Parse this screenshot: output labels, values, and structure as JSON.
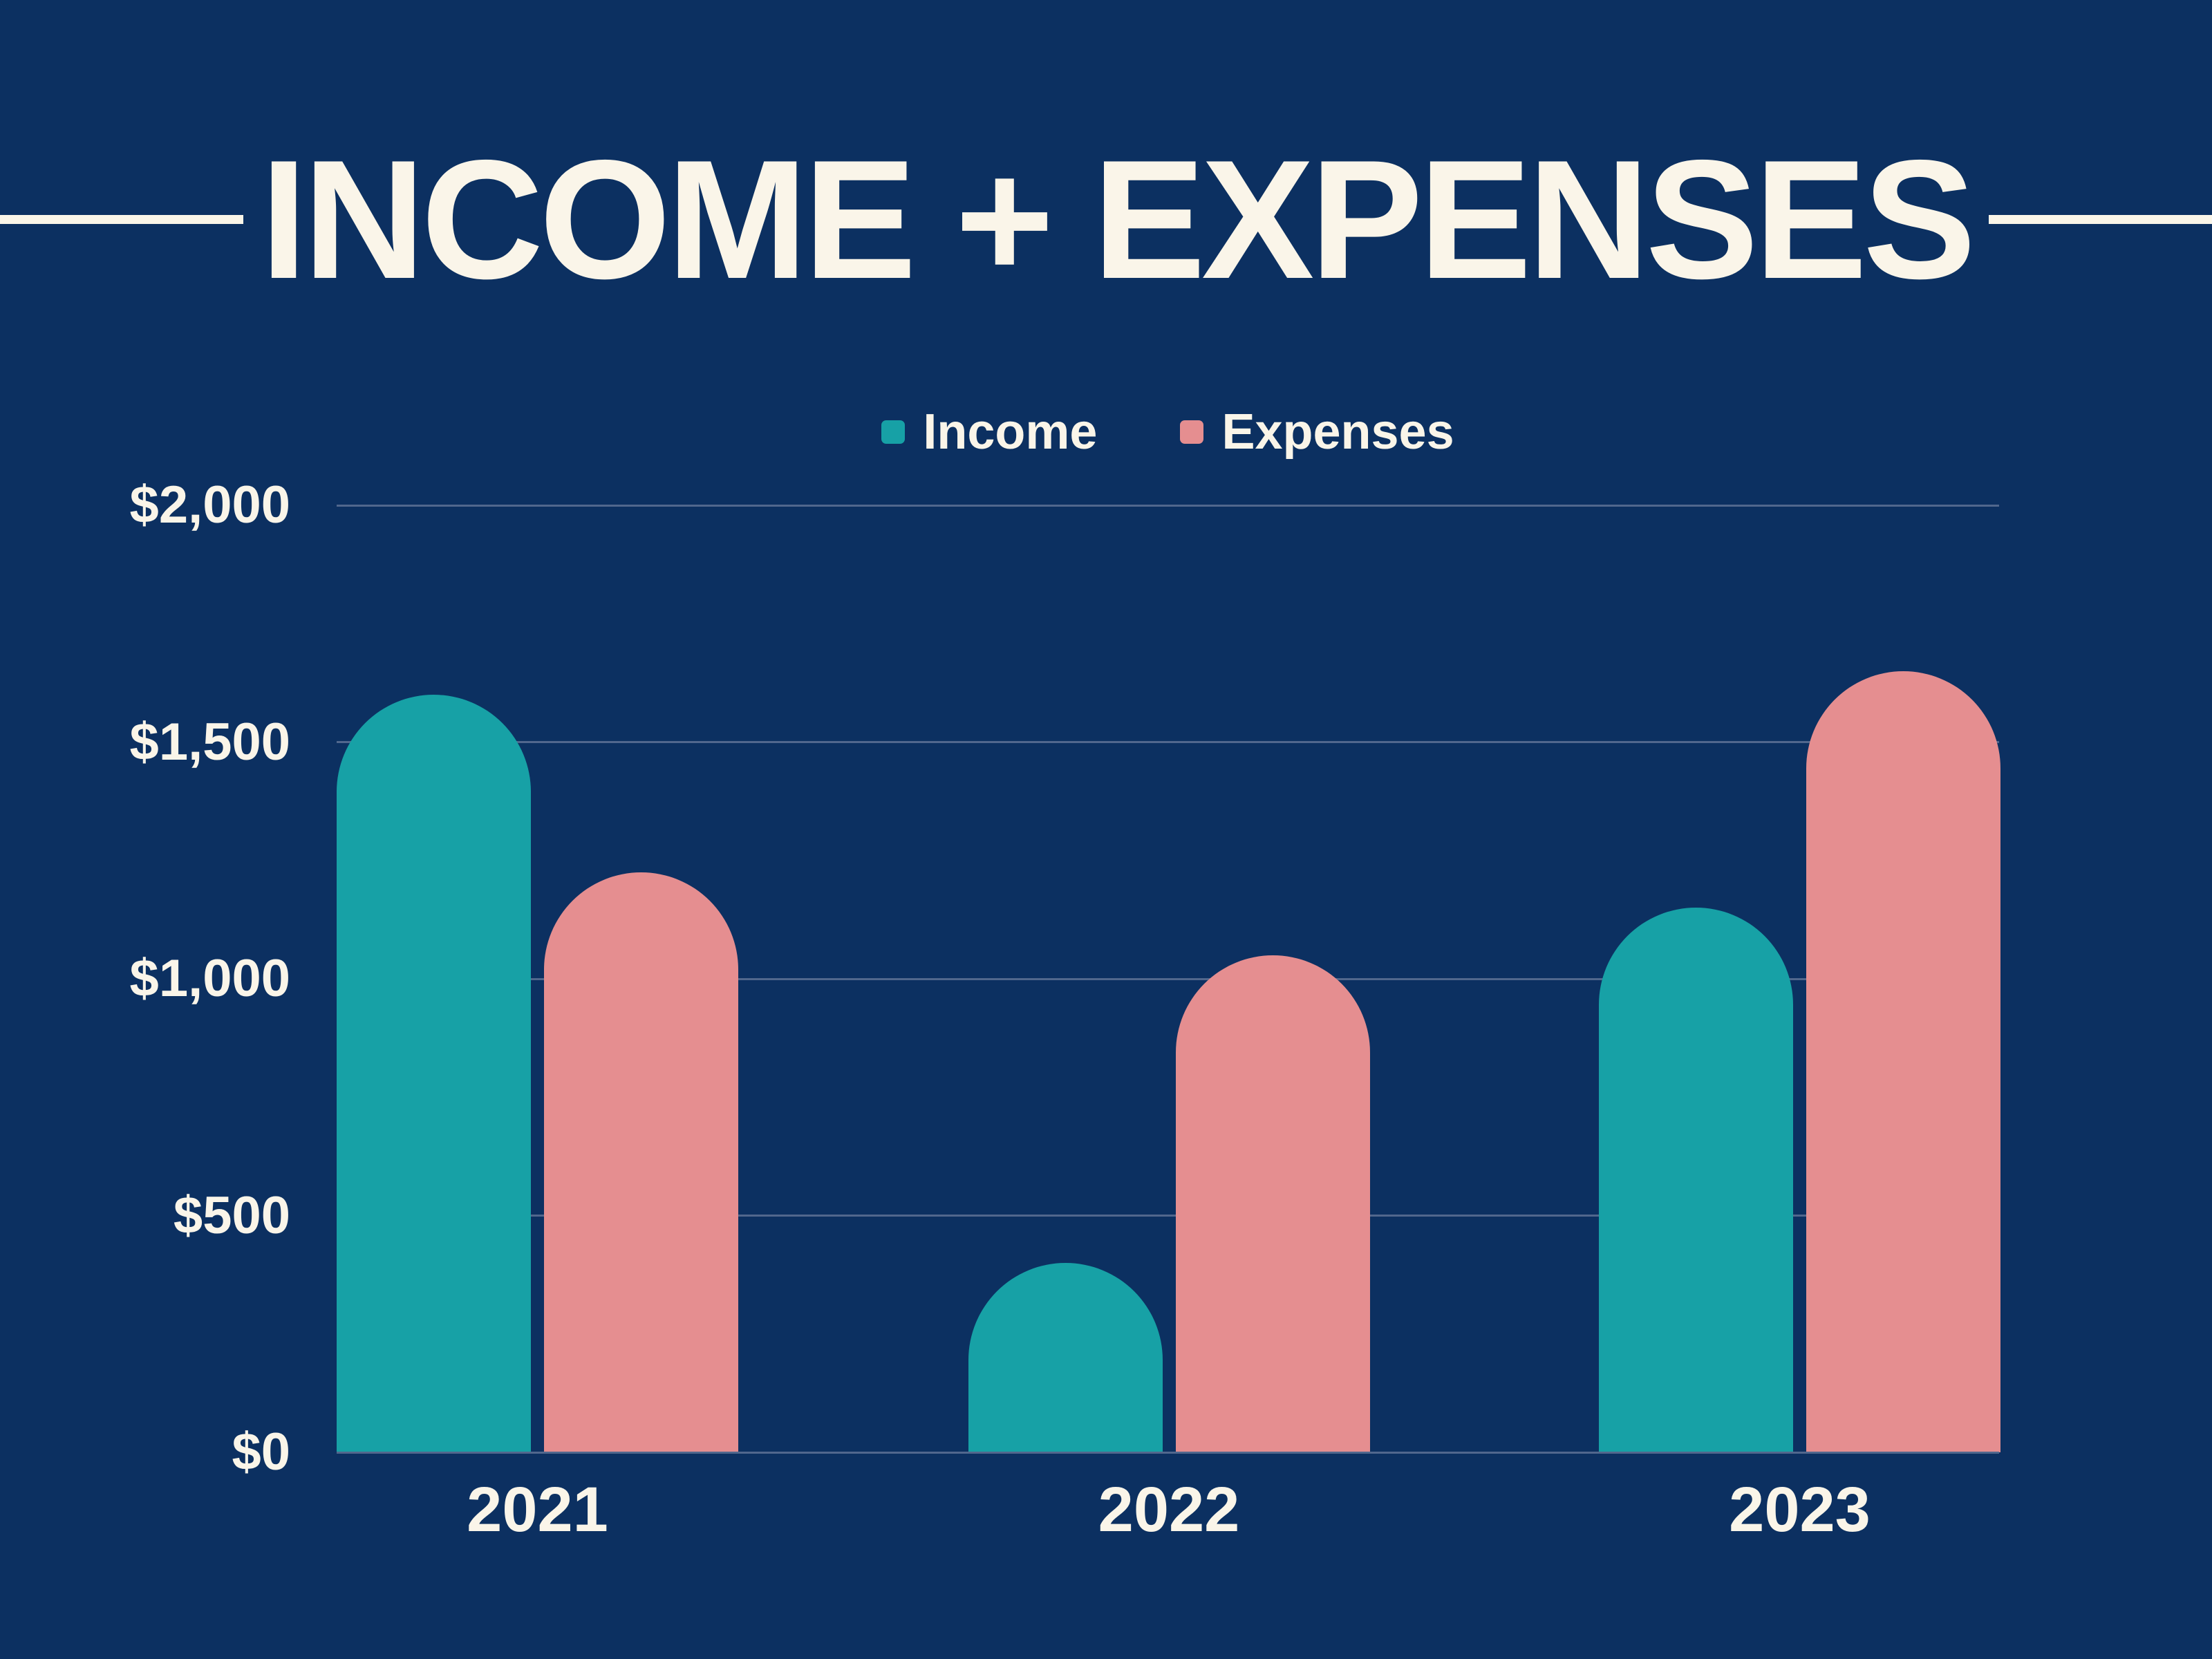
{
  "page": {
    "background_color": "#0c3061",
    "text_color": "#faf5e9"
  },
  "title": {
    "text": "INCOME + EXPENSES"
  },
  "legend": {
    "items": [
      {
        "label": "Income",
        "color": "#17a1a6"
      },
      {
        "label": "Expenses",
        "color": "#e58e90"
      }
    ]
  },
  "chart_data": {
    "type": "bar",
    "title": "INCOME + EXPENSES",
    "categories": [
      "2021",
      "2022",
      "2023"
    ],
    "series": [
      {
        "name": "Income",
        "color": "#17a1a6",
        "values": [
          1600,
          400,
          1150
        ]
      },
      {
        "name": "Expenses",
        "color": "#e58e90",
        "values": [
          1225,
          1050,
          1650
        ]
      }
    ],
    "xlabel": "",
    "ylabel": "",
    "ylim": [
      0,
      2000
    ],
    "y_ticks": [
      {
        "label": "$0",
        "value": 0
      },
      {
        "label": "$500",
        "value": 500
      },
      {
        "label": "$1,000",
        "value": 1000
      },
      {
        "label": "$1,500",
        "value": 1500
      },
      {
        "label": "$2,000",
        "value": 2000
      }
    ],
    "grid": true,
    "gridline_color": "#51678d",
    "legend_position": "top",
    "bar_cap": "rounded-top"
  }
}
